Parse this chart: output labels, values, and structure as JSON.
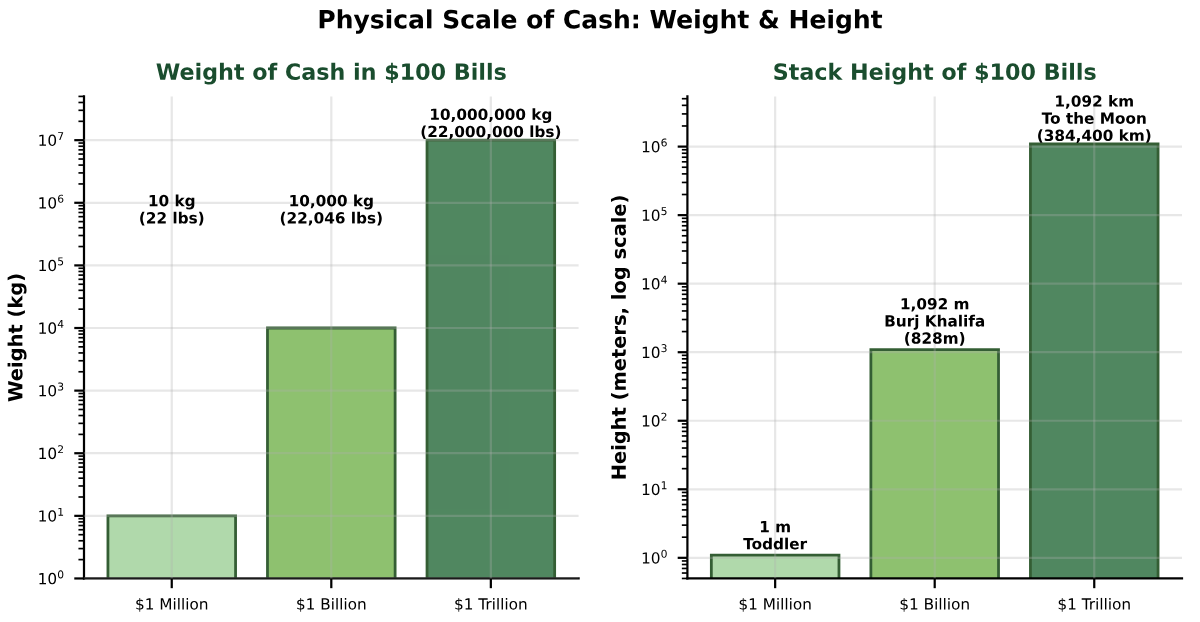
{
  "chart_data": [
    {
      "type": "bar",
      "title": "Weight of Cash in $100 Bills",
      "ylabel": "Weight (kg)",
      "categories": [
        "$1 Million",
        "$1 Billion",
        "$1 Trillion"
      ],
      "values": [
        10,
        10000,
        10000000
      ],
      "colors": [
        "#a8d5a2",
        "#82bb60",
        "#3e7a4f"
      ],
      "log": true,
      "ylim": [
        1,
        50000000
      ],
      "yticks": [
        {
          "value": 1,
          "label": "10$^{0}$"
        },
        {
          "value": 10,
          "label": "10$^{1}$"
        },
        {
          "value": 100,
          "label": "10$^{2}$"
        },
        {
          "value": 1000,
          "label": "10$^{3}$"
        },
        {
          "value": 10000,
          "label": "10$^{4}$"
        },
        {
          "value": 100000,
          "label": "10$^{5}$"
        },
        {
          "value": 1000000,
          "label": "10$^{6}$"
        },
        {
          "value": 10000000,
          "label": "10$^{7}$"
        }
      ],
      "grid": true,
      "annotations": [
        "Physical Scale of Cash: Weight & Height",
        "10 kg\n(22 lbs)",
        "10,000 kg\n(22,046 lbs)",
        "10,000,000 kg\n(22,000,000 lbs)"
      ]
    },
    {
      "type": "bar",
      "title": "Stack Height of $100 Bills",
      "ylabel": "Height (meters, log scale)",
      "categories": [
        "$1 Million",
        "$1 Billion",
        "$1 Trillion"
      ],
      "values": [
        1.092,
        1092,
        1092000
      ],
      "colors": [
        "#a8d5a2",
        "#82bb60",
        "#3e7a4f"
      ],
      "log": true,
      "ylim": [
        0.5,
        5400000
      ],
      "yticks": [
        {
          "value": 1,
          "label": "10$^{0}$"
        },
        {
          "value": 10,
          "label": "10$^{1}$"
        },
        {
          "value": 100,
          "label": "10$^{2}$"
        },
        {
          "value": 1000,
          "label": "10$^{3}$"
        },
        {
          "value": 10000,
          "label": "10$^{4}$"
        },
        {
          "value": 100000,
          "label": "10$^{5}$"
        },
        {
          "value": 1000000,
          "label": "10$^{6}$"
        }
      ],
      "grid": true,
      "value_labels": [
        "1 m\nToddler",
        "1,092 m\nBurj Khalifa\n(828m)",
        null
      ],
      "annotations": [
        "1,092 km\nTo the Moon\n(384,400 km)"
      ]
    }
  ]
}
